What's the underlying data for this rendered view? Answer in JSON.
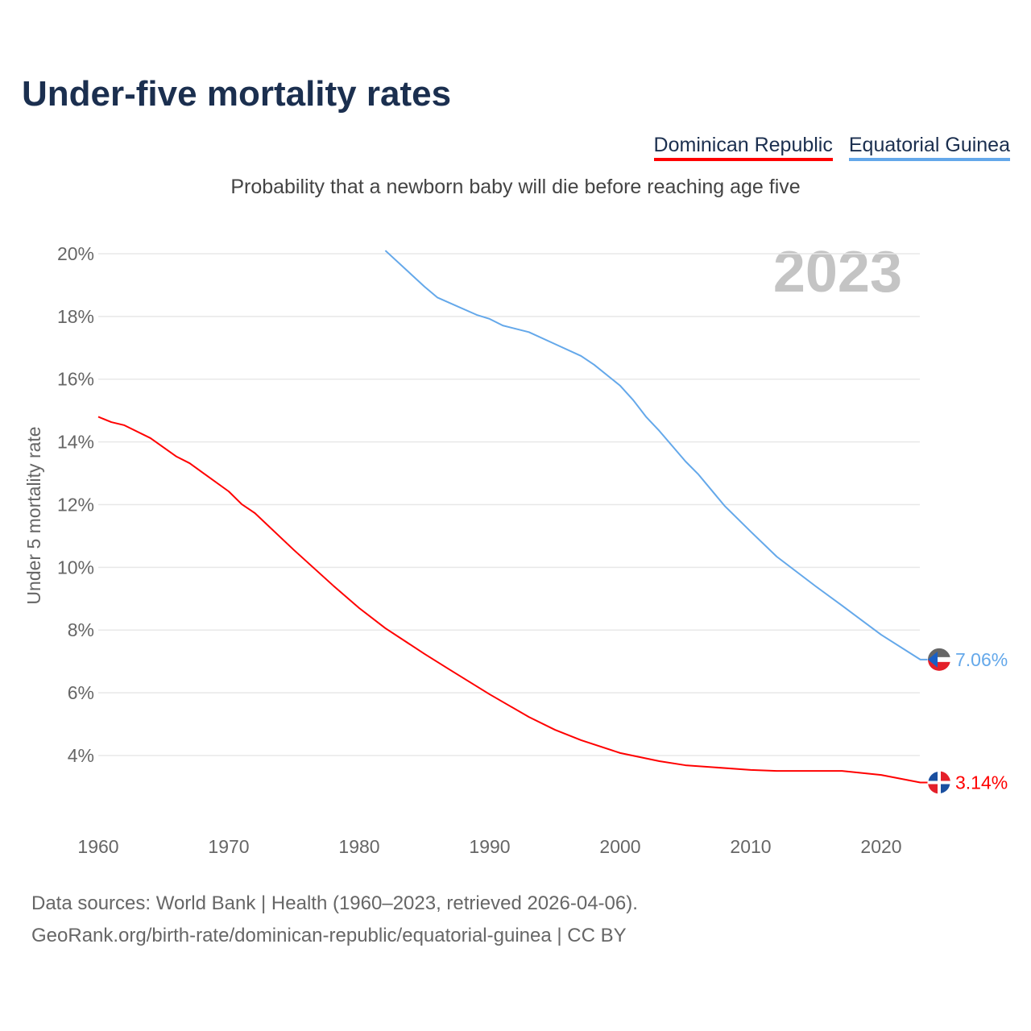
{
  "title": "Under-five mortality rates",
  "subtitle": "Probability that a newborn baby will die before reaching age five",
  "legend": [
    {
      "label": "Dominican Republic",
      "color": "#ff0000"
    },
    {
      "label": "Equatorial Guinea",
      "color": "#64a8ea"
    }
  ],
  "year_label": "2023",
  "sources": {
    "line1": "Data sources: World Bank | Health (1960–2023, retrieved 2026-04-06).",
    "line2": "GeoRank.org/birth-rate/dominican-republic/equatorial-guinea | CC BY"
  },
  "chart_data": {
    "type": "line",
    "title": "Under-five mortality rates",
    "xlabel": "",
    "ylabel": "Under 5 mortality rate",
    "xlim": [
      1960,
      2023
    ],
    "ylim": [
      2.5,
      20.5
    ],
    "xticks": [
      1960,
      1970,
      1980,
      1990,
      2000,
      2010,
      2020
    ],
    "yticks": [
      4,
      6,
      8,
      10,
      12,
      14,
      16,
      18,
      20
    ],
    "ytick_labels": [
      "4%",
      "6%",
      "8%",
      "10%",
      "12%",
      "14%",
      "16%",
      "18%",
      "20%"
    ],
    "grid": true,
    "legend_position": "top-right",
    "series": [
      {
        "name": "Dominican Republic",
        "color": "#ff0000",
        "end_label": "3.14%",
        "x": [
          1960,
          1961,
          1962,
          1964,
          1966,
          1967,
          1970,
          1971,
          1972,
          1975,
          1978,
          1980,
          1982,
          1985,
          1987,
          1990,
          1993,
          1995,
          1997,
          2000,
          2003,
          2005,
          2010,
          2012,
          2017,
          2020,
          2023
        ],
        "y": [
          14.8,
          14.63,
          14.53,
          14.12,
          13.53,
          13.32,
          12.42,
          12.01,
          11.73,
          10.55,
          9.42,
          8.7,
          8.06,
          7.24,
          6.72,
          5.95,
          5.23,
          4.82,
          4.49,
          4.08,
          3.82,
          3.69,
          3.54,
          3.51,
          3.51,
          3.38,
          3.14
        ]
      },
      {
        "name": "Equatorial Guinea",
        "color": "#64a8ea",
        "end_label": "7.06%",
        "x": [
          1982,
          1985,
          1986,
          1989,
          1990,
          1991,
          1993,
          1995,
          1997,
          1998,
          2000,
          2001,
          2002,
          2003,
          2005,
          2006,
          2008,
          2010,
          2012,
          2015,
          2017,
          2020,
          2023
        ],
        "y": [
          20.1,
          18.95,
          18.6,
          18.05,
          17.92,
          17.71,
          17.5,
          17.12,
          16.74,
          16.46,
          15.79,
          15.33,
          14.79,
          14.35,
          13.38,
          12.96,
          11.96,
          11.14,
          10.34,
          9.39,
          8.78,
          7.85,
          7.06
        ]
      }
    ]
  }
}
